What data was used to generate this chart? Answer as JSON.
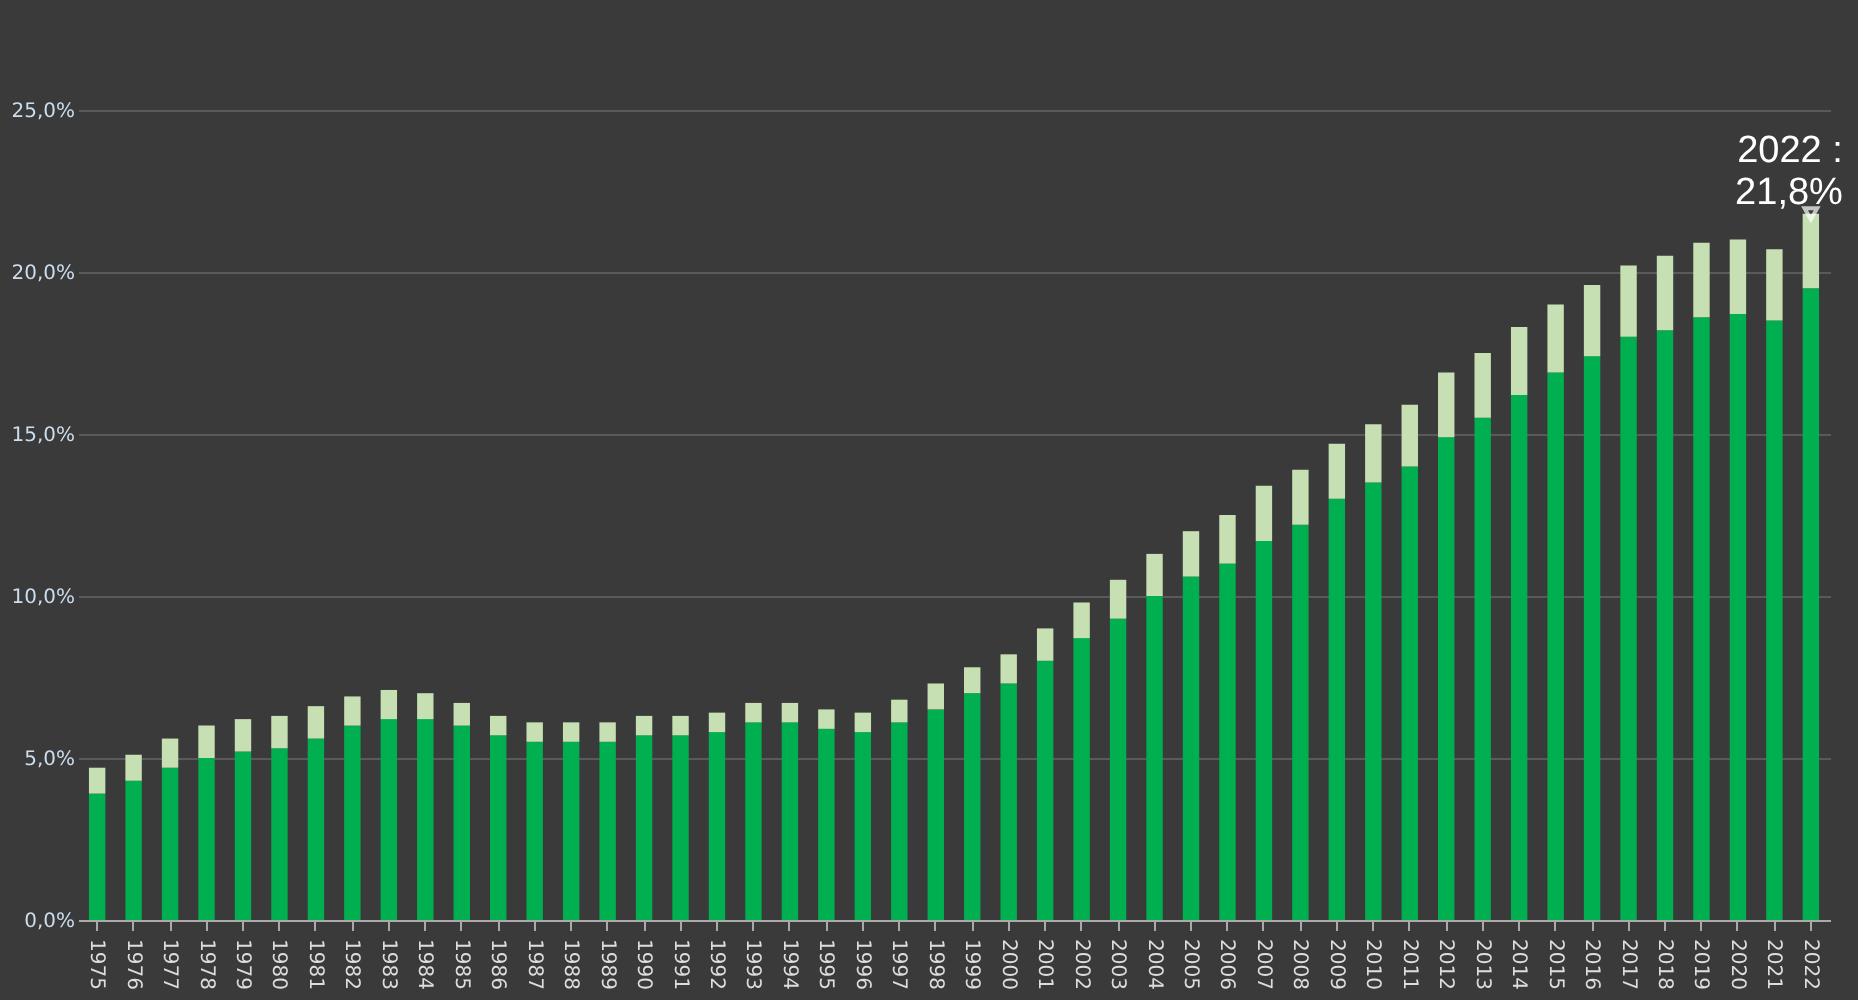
{
  "chart_data": {
    "type": "bar",
    "stacked": true,
    "categories": [
      "1975",
      "1976",
      "1977",
      "1978",
      "1979",
      "1980",
      "1981",
      "1982",
      "1983",
      "1984",
      "1985",
      "1986",
      "1987",
      "1988",
      "1989",
      "1990",
      "1991",
      "1992",
      "1993",
      "1994",
      "1995",
      "1996",
      "1997",
      "1998",
      "1999",
      "2000",
      "2001",
      "2002",
      "2003",
      "2004",
      "2005",
      "2006",
      "2007",
      "2008",
      "2009",
      "2010",
      "2011",
      "2012",
      "2013",
      "2014",
      "2015",
      "2016",
      "2017",
      "2018",
      "2019",
      "2020",
      "2021",
      "2022"
    ],
    "series": [
      {
        "color": "#00b050",
        "values": [
          3.9,
          4.3,
          4.7,
          5.0,
          5.2,
          5.3,
          5.6,
          6.0,
          6.2,
          6.2,
          6.0,
          5.7,
          5.5,
          5.5,
          5.5,
          5.7,
          5.7,
          5.8,
          6.1,
          6.1,
          5.9,
          5.8,
          6.1,
          6.5,
          7.0,
          7.3,
          8.0,
          8.7,
          9.3,
          10.0,
          10.6,
          11.0,
          11.7,
          12.2,
          13.0,
          13.5,
          14.0,
          14.9,
          15.5,
          16.2,
          16.9,
          17.4,
          18.0,
          18.2,
          18.6,
          18.7,
          18.5,
          19.5
        ]
      },
      {
        "color": "#c6e0b4",
        "values": [
          0.8,
          0.8,
          0.9,
          1.0,
          1.0,
          1.0,
          1.0,
          0.9,
          0.9,
          0.8,
          0.7,
          0.6,
          0.6,
          0.6,
          0.6,
          0.6,
          0.6,
          0.6,
          0.6,
          0.6,
          0.6,
          0.6,
          0.7,
          0.8,
          0.8,
          0.9,
          1.0,
          1.1,
          1.2,
          1.3,
          1.4,
          1.5,
          1.7,
          1.7,
          1.7,
          1.8,
          1.9,
          2.0,
          2.0,
          2.1,
          2.1,
          2.2,
          2.2,
          2.3,
          2.3,
          2.3,
          2.2,
          2.3
        ]
      }
    ],
    "ylim": [
      0,
      25
    ],
    "yticks": [
      {
        "value": 0,
        "label": "0,0%"
      },
      {
        "value": 5,
        "label": "5,0%"
      },
      {
        "value": 10,
        "label": "10,0%"
      },
      {
        "value": 15,
        "label": "15,0%"
      },
      {
        "value": 20,
        "label": "20,0%"
      },
      {
        "value": 25,
        "label": "25,0%"
      }
    ],
    "grid": "y",
    "legend": false,
    "annotations": [
      {
        "text": "2022 :\n21,8%",
        "x": "2022",
        "y": 21.8
      }
    ]
  }
}
